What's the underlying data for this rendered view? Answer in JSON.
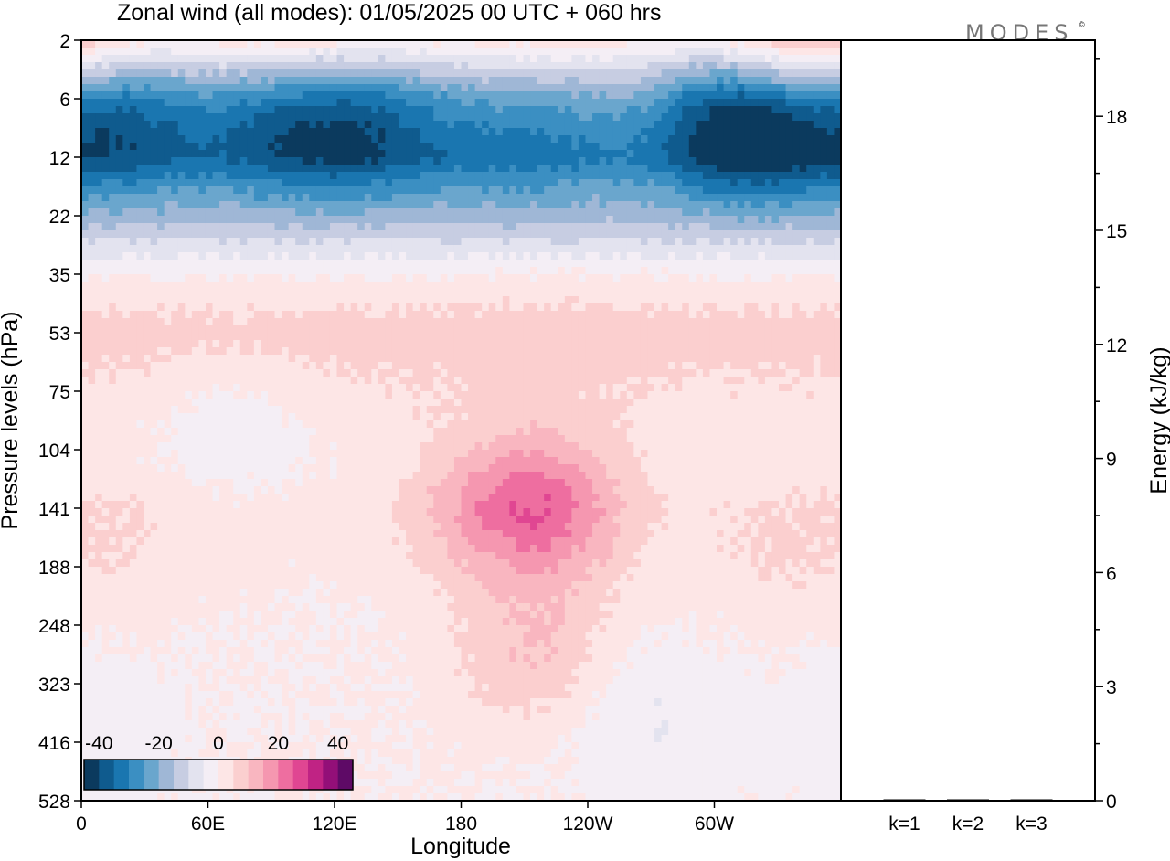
{
  "header": {
    "title": "Zonal wind (all modes):  01/05/2025  00 UTC  + 060 hrs",
    "logo_text": "MODES",
    "logo_mark": "©"
  },
  "chart_data": [
    {
      "type": "heatmap",
      "title": "Zonal wind (all modes):  01/05/2025  00 UTC  + 060 hrs",
      "xlabel": "Longitude",
      "ylabel": "Pressure levels (hPa)",
      "x_ticks": [
        {
          "lon": 0,
          "label": "0"
        },
        {
          "lon": 60,
          "label": "60E"
        },
        {
          "lon": 120,
          "label": "120E"
        },
        {
          "lon": 180,
          "label": "180"
        },
        {
          "lon": 240,
          "label": "120W"
        },
        {
          "lon": 300,
          "label": "60W"
        }
      ],
      "xlim": [
        0,
        360
      ],
      "y_levels": [
        "2",
        "6",
        "12",
        "22",
        "35",
        "53",
        "75",
        "104",
        "141",
        "188",
        "248",
        "323",
        "416",
        "528"
      ],
      "colorbar": {
        "tick_labels": [
          "-40",
          "-20",
          "0",
          "20",
          "40"
        ],
        "tick_values": [
          -40,
          -20,
          0,
          20,
          40
        ],
        "range": [
          -45,
          45
        ],
        "step": 5,
        "colors": [
          "#0b3a5e",
          "#0f5b8e",
          "#1a76b0",
          "#3b8fc2",
          "#6aa6cd",
          "#9fb7d6",
          "#c7cde2",
          "#e3e3ef",
          "#f4eef5",
          "#fde6e6",
          "#fbcfcf",
          "#f9b6c0",
          "#f597b0",
          "#ee6ea0",
          "#e04692",
          "#c02384",
          "#930f78",
          "#5e0a66"
        ]
      },
      "profile_by_level": [
        4,
        -15,
        -25,
        -15,
        0,
        8,
        4,
        1,
        2,
        1,
        0,
        0,
        0,
        0
      ],
      "features": [
        {
          "lon": 20,
          "level": 1.3,
          "value": -32
        },
        {
          "lon": 95,
          "level": 1.3,
          "value": -32
        },
        {
          "lon": 140,
          "level": 1.4,
          "value": -30
        },
        {
          "lon": 205,
          "level": 1.5,
          "value": -32
        },
        {
          "lon": 235,
          "level": 1.6,
          "value": -28
        },
        {
          "lon": 310,
          "level": 1.3,
          "value": -38
        },
        {
          "lon": 332,
          "level": 1.6,
          "value": -33
        },
        {
          "lon": 340,
          "level": 0.05,
          "value": 18
        },
        {
          "lon": 100,
          "level": 0.05,
          "value": 10
        },
        {
          "lon": 220,
          "level": 8.0,
          "value": 20
        },
        {
          "lon": 215,
          "level": 10.5,
          "value": 10
        },
        {
          "lon": 190,
          "level": 8.0,
          "value": 10
        },
        {
          "lon": 230,
          "level": 5.2,
          "value": 9
        },
        {
          "lon": 70,
          "level": 6.5,
          "value": -4
        },
        {
          "lon": 265,
          "level": 11.5,
          "value": -5
        },
        {
          "lon": 330,
          "level": 8.7,
          "value": 5
        },
        {
          "lon": 25,
          "level": 8.5,
          "value": 4
        },
        {
          "lon": 5,
          "level": 11.8,
          "value": -3
        }
      ]
    },
    {
      "type": "bar",
      "ylabel": "Energy (kJ/kg)",
      "categories": [
        "k=1",
        "k=2",
        "k=3"
      ],
      "values": [
        0.02,
        0.01,
        0.01
      ],
      "ylim": [
        0,
        20
      ],
      "y_ticks": [
        0,
        3,
        6,
        9,
        12,
        15,
        18
      ]
    }
  ]
}
